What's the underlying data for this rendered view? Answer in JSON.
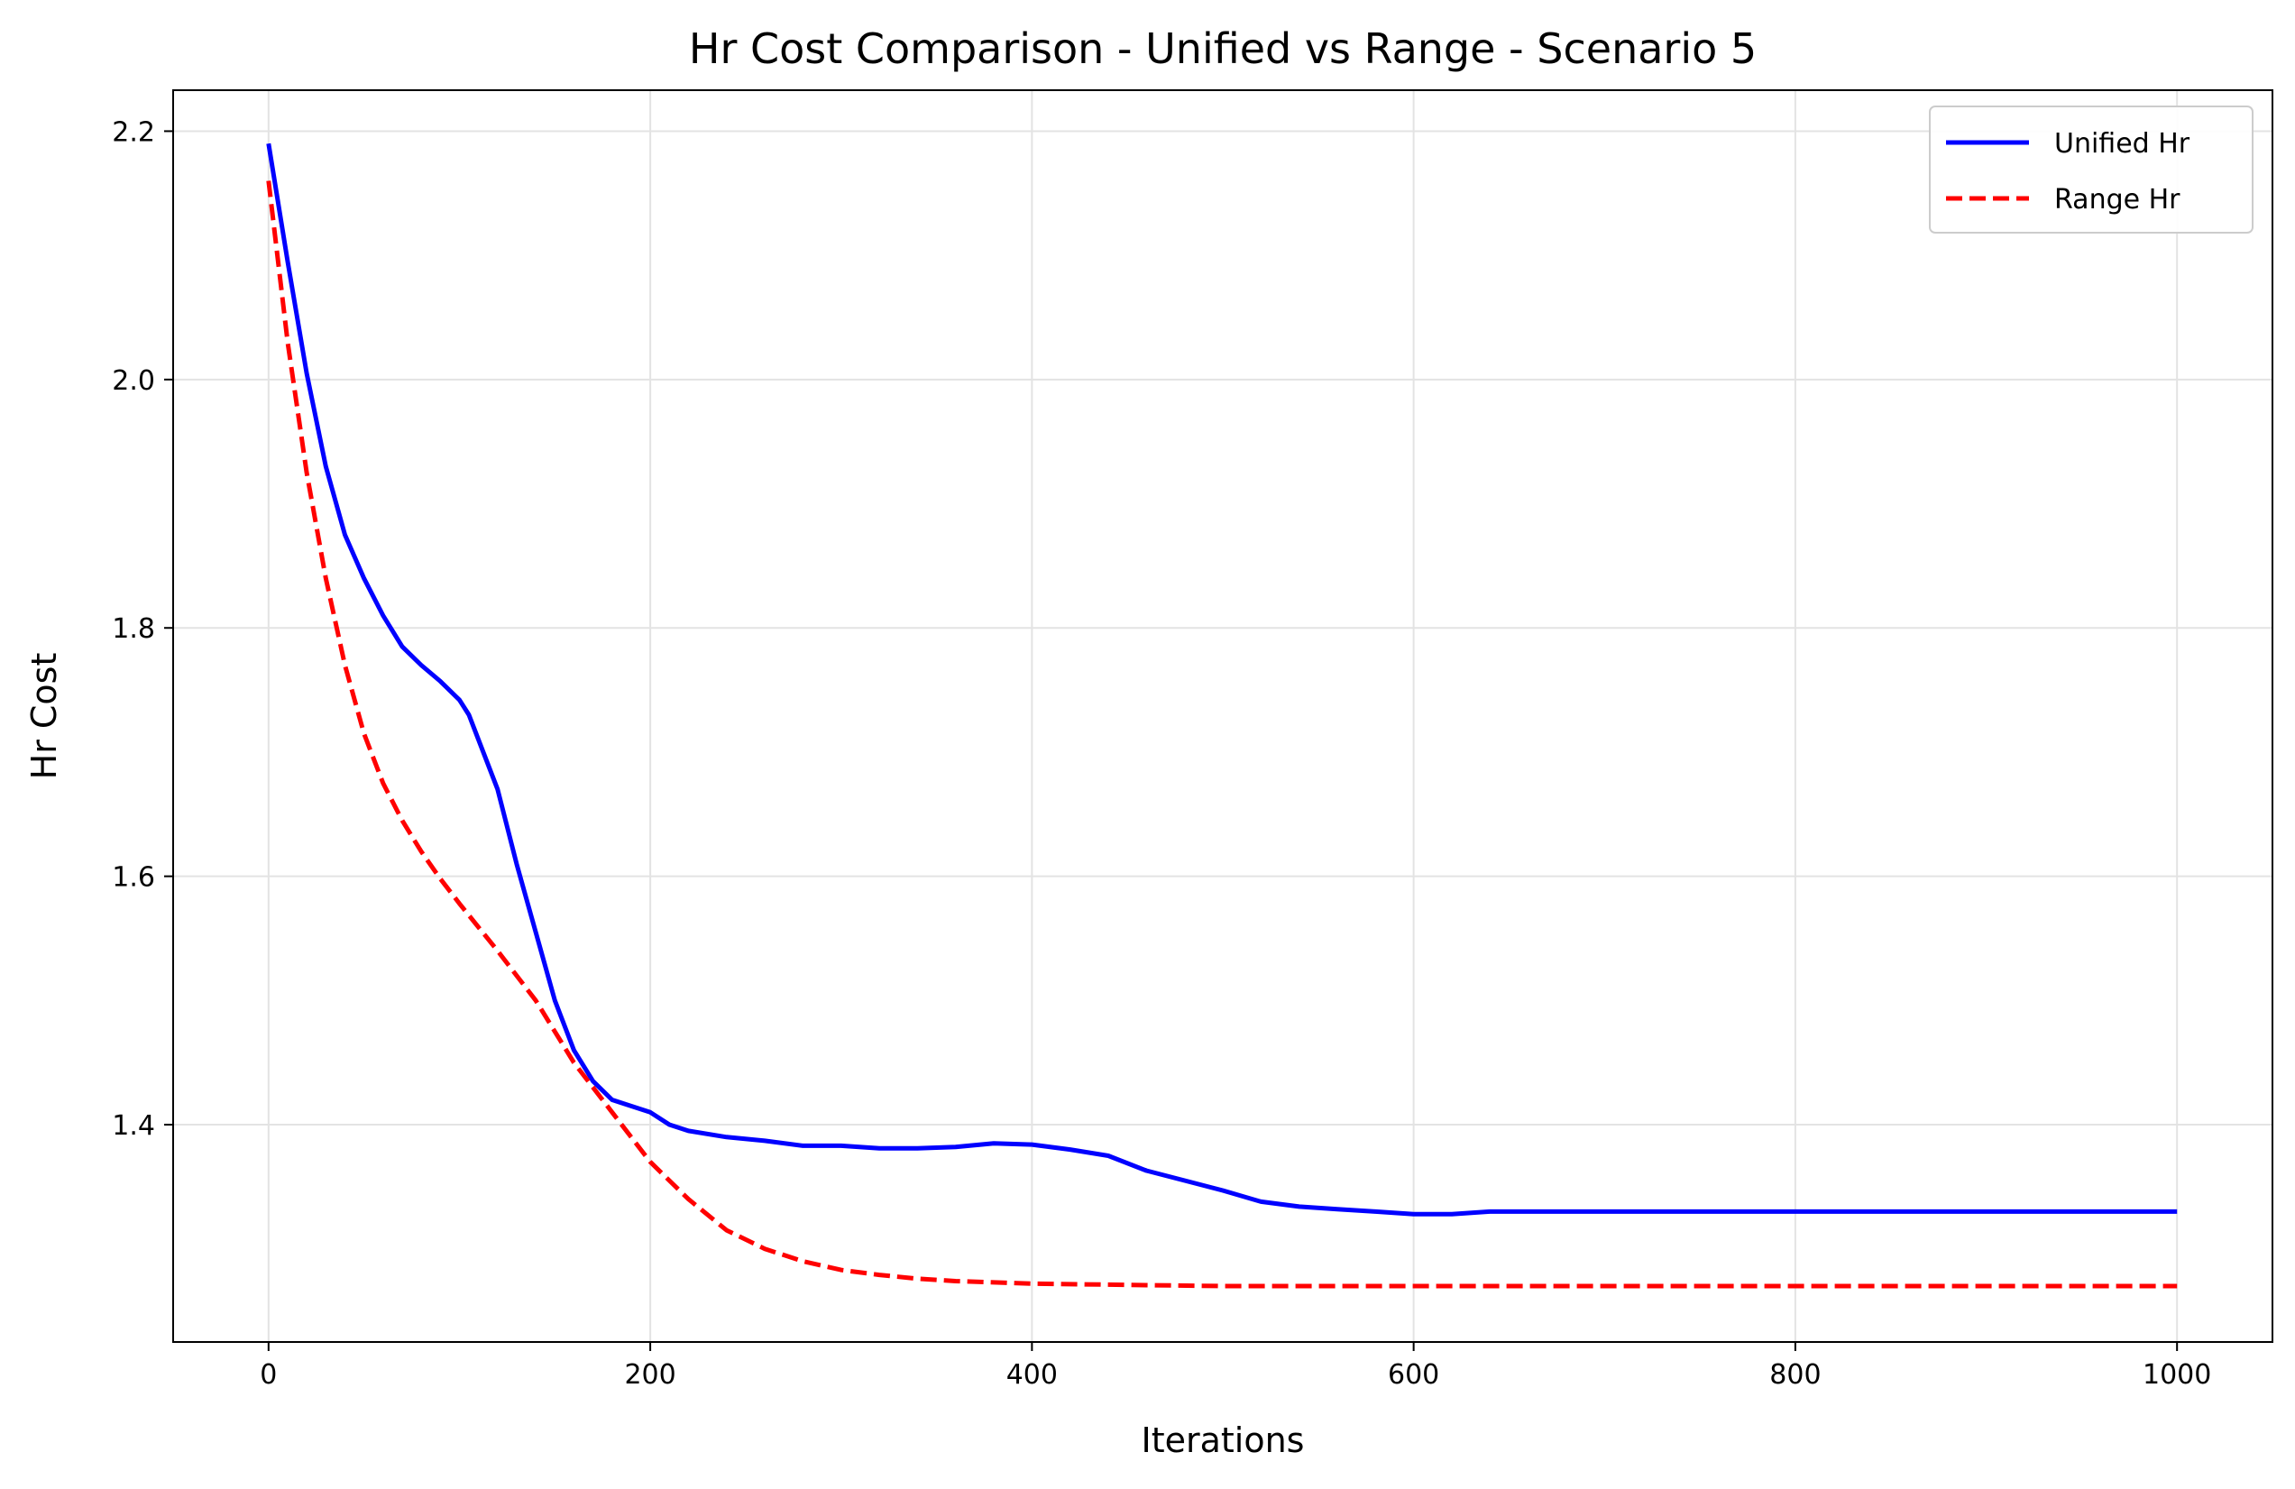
{
  "chart_data": {
    "type": "line",
    "title": "Hr Cost Comparison - Unified vs Range - Scenario 5",
    "xlabel": "Iterations",
    "ylabel": "Hr Cost",
    "xlim": [
      -50,
      1050
    ],
    "ylim": [
      1.225,
      2.233
    ],
    "xticks": [
      0,
      200,
      400,
      600,
      800,
      1000
    ],
    "yticks": [
      1.4,
      1.6,
      1.8,
      2.0,
      2.2
    ],
    "xtick_labels": [
      "0",
      "200",
      "400",
      "600",
      "800",
      "1000"
    ],
    "ytick_labels": [
      "1.4",
      "1.6",
      "1.8",
      "2.0",
      "2.2"
    ],
    "grid": true,
    "legend_position": "top-right",
    "series": [
      {
        "name": "Unified Hr",
        "color": "#0000ff",
        "style": "solid",
        "x": [
          0,
          10,
          20,
          30,
          40,
          50,
          60,
          70,
          80,
          90,
          100,
          105,
          110,
          120,
          130,
          140,
          150,
          160,
          170,
          180,
          190,
          200,
          210,
          220,
          240,
          260,
          280,
          300,
          320,
          340,
          360,
          380,
          400,
          420,
          440,
          460,
          480,
          500,
          520,
          540,
          560,
          580,
          600,
          620,
          640,
          660,
          680,
          700,
          750,
          800,
          850,
          900,
          950,
          1000
        ],
        "y": [
          2.19,
          2.095,
          2.005,
          1.93,
          1.875,
          1.84,
          1.81,
          1.785,
          1.77,
          1.757,
          1.742,
          1.73,
          1.71,
          1.67,
          1.61,
          1.555,
          1.5,
          1.46,
          1.435,
          1.42,
          1.415,
          1.41,
          1.4,
          1.395,
          1.39,
          1.387,
          1.383,
          1.383,
          1.381,
          1.381,
          1.382,
          1.385,
          1.384,
          1.38,
          1.375,
          1.363,
          1.355,
          1.347,
          1.338,
          1.334,
          1.332,
          1.33,
          1.328,
          1.328,
          1.33,
          1.33,
          1.33,
          1.33,
          1.33,
          1.33,
          1.33,
          1.33,
          1.33,
          1.33
        ]
      },
      {
        "name": "Range Hr",
        "color": "#ff0000",
        "style": "dashed",
        "x": [
          0,
          10,
          20,
          30,
          40,
          50,
          60,
          70,
          80,
          90,
          100,
          120,
          140,
          160,
          180,
          200,
          220,
          240,
          260,
          280,
          300,
          320,
          340,
          360,
          380,
          400,
          450,
          500,
          600,
          700,
          800,
          900,
          1000
        ],
        "y": [
          2.16,
          2.03,
          1.925,
          1.84,
          1.77,
          1.715,
          1.675,
          1.645,
          1.62,
          1.598,
          1.578,
          1.54,
          1.5,
          1.45,
          1.41,
          1.37,
          1.34,
          1.315,
          1.3,
          1.29,
          1.283,
          1.279,
          1.276,
          1.274,
          1.273,
          1.272,
          1.271,
          1.27,
          1.27,
          1.27,
          1.27,
          1.27,
          1.27
        ]
      }
    ]
  }
}
